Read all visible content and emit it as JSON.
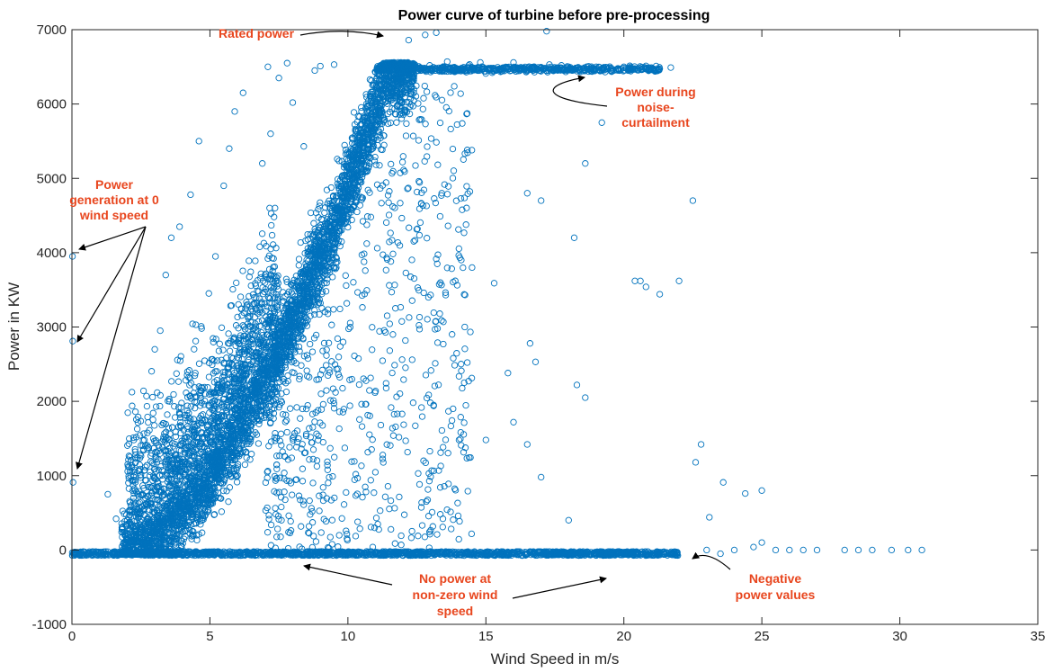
{
  "chart_data": {
    "type": "scatter",
    "title": "Power curve of turbine before pre-processing",
    "xlabel": "Wind Speed in m/s",
    "ylabel": "Power in KW",
    "xlim": [
      0,
      35
    ],
    "ylim": [
      -1000,
      7000
    ],
    "xticks": [
      "0",
      "5",
      "10",
      "15",
      "20",
      "25",
      "30",
      "35"
    ],
    "yticks": [
      "-1000",
      "0",
      "1000",
      "2000",
      "3000",
      "4000",
      "5000",
      "6000",
      "7000"
    ],
    "grid": false,
    "marker": "open-circle",
    "series_color": "#0072bd",
    "annotation_color": "#e8461e",
    "points": [
      [
        0.02,
        3950
      ],
      [
        0.03,
        2810
      ],
      [
        0.04,
        910
      ],
      [
        0.1,
        -50
      ],
      [
        0.5,
        -60
      ],
      [
        1.2,
        -55
      ],
      [
        1.3,
        750
      ],
      [
        1.6,
        420
      ],
      [
        1.8,
        240
      ],
      [
        2.3,
        1860
      ],
      [
        2.7,
        2070
      ],
      [
        3.0,
        2700
      ],
      [
        3.2,
        2950
      ],
      [
        3.4,
        3700
      ],
      [
        3.6,
        4200
      ],
      [
        3.9,
        4350
      ],
      [
        4.3,
        4780
      ],
      [
        4.6,
        5500
      ],
      [
        4.7,
        2980
      ],
      [
        5.0,
        1450
      ],
      [
        5.2,
        3950
      ],
      [
        5.5,
        4900
      ],
      [
        5.7,
        5400
      ],
      [
        5.9,
        5900
      ],
      [
        6.2,
        6150
      ],
      [
        6.4,
        2700
      ],
      [
        6.9,
        5200
      ],
      [
        7.1,
        6500
      ],
      [
        7.2,
        5600
      ],
      [
        7.5,
        6350
      ],
      [
        7.8,
        6550
      ],
      [
        8.0,
        6020
      ],
      [
        8.4,
        5430
      ],
      [
        8.8,
        6450
      ],
      [
        9.0,
        6510
      ],
      [
        9.5,
        6530
      ],
      [
        12.2,
        6860
      ],
      [
        12.8,
        6930
      ],
      [
        13.2,
        6960
      ],
      [
        13.6,
        6570
      ],
      [
        14.8,
        6560
      ],
      [
        16.0,
        6560
      ],
      [
        17.2,
        6980
      ],
      [
        17.3,
        6530
      ],
      [
        18.0,
        6500
      ],
      [
        19.0,
        6500
      ],
      [
        20.0,
        6500
      ],
      [
        21.0,
        6490
      ],
      [
        21.7,
        6490
      ],
      [
        16.5,
        4800
      ],
      [
        17.0,
        4700
      ],
      [
        18.2,
        4200
      ],
      [
        18.6,
        5200
      ],
      [
        19.2,
        5750
      ],
      [
        14.5,
        3800
      ],
      [
        15.3,
        3590
      ],
      [
        15.8,
        2380
      ],
      [
        16.8,
        2530
      ],
      [
        18.3,
        2220
      ],
      [
        18.6,
        2050
      ],
      [
        15.0,
        1480
      ],
      [
        16.0,
        1720
      ],
      [
        16.5,
        1420
      ],
      [
        17.0,
        980
      ],
      [
        18.0,
        400
      ],
      [
        16.6,
        2780
      ],
      [
        20.4,
        3620
      ],
      [
        20.6,
        3620
      ],
      [
        20.8,
        3540
      ],
      [
        21.3,
        3440
      ],
      [
        22.0,
        3620
      ],
      [
        22.5,
        4700
      ],
      [
        22.6,
        1180
      ],
      [
        22.8,
        1420
      ],
      [
        23.1,
        440
      ],
      [
        23.6,
        910
      ],
      [
        24.4,
        760
      ],
      [
        25.0,
        800
      ],
      [
        25.0,
        100
      ],
      [
        24.7,
        40
      ],
      [
        23.5,
        -50
      ],
      [
        23.0,
        0
      ],
      [
        24.0,
        0
      ],
      [
        25.5,
        0
      ],
      [
        26.0,
        0
      ],
      [
        26.5,
        0
      ],
      [
        27.0,
        0
      ],
      [
        28.0,
        0
      ],
      [
        28.5,
        0
      ],
      [
        29.0,
        0
      ],
      [
        29.7,
        0
      ],
      [
        30.3,
        0
      ],
      [
        30.8,
        0
      ]
    ],
    "annotations": {
      "rated_power": "Rated power",
      "noise_curtailment": [
        "Power during",
        "noise-",
        "curtailment"
      ],
      "zero_wind": [
        "Power",
        "generation at 0",
        "wind speed"
      ],
      "no_power": [
        "No power at",
        "non-zero wind",
        "speed"
      ],
      "negative_power": [
        "Negative",
        "power values"
      ]
    }
  }
}
